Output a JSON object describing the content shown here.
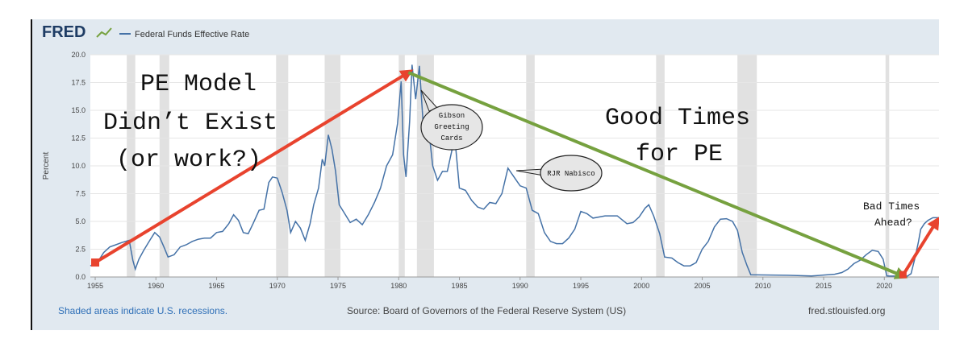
{
  "header": {
    "logo_text": "FRED",
    "legend_label": "Federal Funds Effective Rate"
  },
  "footer": {
    "recession_note": "Shaded areas indicate U.S. recessions.",
    "source": "Source: Board of Governors of the Federal Reserve System (US)",
    "site": "fred.stlouisfed.org"
  },
  "colors": {
    "series": "#4572a7",
    "recession": "#e1e1e1",
    "panel": "#e1e9f0",
    "red_arrow": "#e8432e",
    "green_arrow": "#76a13f",
    "footer_link": "#2e6fb7"
  },
  "annotations": {
    "pe_model": [
      "PE Model",
      "Didn’t Exist",
      "(or work?)"
    ],
    "good_times": [
      "Good Times",
      "for PE"
    ],
    "bad_times": [
      "Bad Times",
      "Ahead?"
    ],
    "gibson": [
      "Gibson",
      "Greeting",
      "Cards"
    ],
    "rjr": "RJR Nabisco"
  },
  "chart_data": {
    "type": "line",
    "ylabel": "Percent",
    "xlabel": "",
    "xlim": [
      1954.6,
      2024.5
    ],
    "ylim": [
      0,
      20
    ],
    "grid": true,
    "legend": "top-left",
    "x_ticks": [
      "1955",
      "1960",
      "1965",
      "1970",
      "1975",
      "1980",
      "1985",
      "1990",
      "1995",
      "2000",
      "2005",
      "2010",
      "2015",
      "2020"
    ],
    "y_ticks": [
      "0.0",
      "2.5",
      "5.0",
      "7.5",
      "10.0",
      "12.5",
      "15.0",
      "17.5",
      "20.0"
    ],
    "recessions": [
      [
        1957.6,
        1958.3
      ],
      [
        1960.3,
        1961.1
      ],
      [
        1969.9,
        1970.9
      ],
      [
        1973.9,
        1975.2
      ],
      [
        1980.0,
        1980.5
      ],
      [
        1981.5,
        1982.9
      ],
      [
        1990.5,
        1991.2
      ],
      [
        2001.2,
        2001.9
      ],
      [
        2007.9,
        2009.5
      ],
      [
        2020.1,
        2020.4
      ]
    ],
    "series": [
      {
        "name": "Federal Funds Effective Rate",
        "x": [
          1954.6,
          1954.9,
          1955.3,
          1955.7,
          1956.2,
          1956.7,
          1957.2,
          1957.8,
          1958.1,
          1958.3,
          1958.6,
          1959.0,
          1959.5,
          1959.9,
          1960.3,
          1960.7,
          1961.0,
          1961.5,
          1962.0,
          1962.5,
          1963.0,
          1963.5,
          1964.0,
          1964.5,
          1965.0,
          1965.5,
          1966.0,
          1966.4,
          1966.8,
          1967.2,
          1967.6,
          1968.0,
          1968.5,
          1968.9,
          1969.3,
          1969.6,
          1970.0,
          1970.4,
          1970.8,
          1971.1,
          1971.5,
          1971.9,
          1972.3,
          1972.7,
          1973.0,
          1973.4,
          1973.7,
          1973.9,
          1974.2,
          1974.5,
          1974.8,
          1975.1,
          1975.5,
          1976.0,
          1976.5,
          1977.0,
          1977.5,
          1978.0,
          1978.5,
          1979.0,
          1979.5,
          1979.9,
          1980.2,
          1980.4,
          1980.6,
          1980.9,
          1981.1,
          1981.4,
          1981.7,
          1982.0,
          1982.4,
          1982.8,
          1983.2,
          1983.6,
          1984.0,
          1984.4,
          1984.7,
          1985.0,
          1985.5,
          1986.0,
          1986.5,
          1987.0,
          1987.5,
          1988.0,
          1988.5,
          1989.0,
          1989.5,
          1990.0,
          1990.5,
          1991.0,
          1991.5,
          1992.0,
          1992.5,
          1993.0,
          1993.5,
          1994.0,
          1994.5,
          1995.0,
          1995.5,
          1996.0,
          1997.0,
          1998.0,
          1998.8,
          1999.3,
          1999.8,
          2000.3,
          2000.6,
          2001.0,
          2001.5,
          2001.9,
          2002.5,
          2003.0,
          2003.5,
          2004.0,
          2004.5,
          2005.0,
          2005.5,
          2006.0,
          2006.5,
          2007.0,
          2007.5,
          2007.9,
          2008.3,
          2008.7,
          2009.0,
          2010.0,
          2012.0,
          2014.0,
          2015.9,
          2016.5,
          2017.0,
          2017.5,
          2018.0,
          2018.5,
          2019.0,
          2019.5,
          2019.9,
          2020.2,
          2020.4,
          2021.0,
          2021.9,
          2022.2,
          2022.5,
          2022.8,
          2023.0,
          2023.3,
          2023.6,
          2024.0,
          2024.5
        ],
        "values": [
          1.0,
          1.2,
          1.5,
          2.2,
          2.7,
          2.9,
          3.1,
          3.3,
          1.5,
          0.7,
          1.6,
          2.4,
          3.3,
          4.0,
          3.6,
          2.6,
          1.8,
          2.0,
          2.7,
          2.9,
          3.2,
          3.4,
          3.5,
          3.5,
          4.0,
          4.1,
          4.8,
          5.6,
          5.1,
          4.0,
          3.9,
          4.8,
          6.0,
          6.1,
          8.5,
          9.0,
          8.9,
          7.6,
          6.0,
          4.0,
          5.0,
          4.4,
          3.3,
          4.8,
          6.5,
          8.0,
          10.6,
          10.0,
          12.8,
          11.5,
          9.5,
          6.5,
          5.8,
          4.9,
          5.2,
          4.7,
          5.6,
          6.7,
          8.0,
          10.0,
          11.0,
          13.8,
          17.6,
          11.0,
          9.0,
          14.0,
          19.1,
          16.0,
          19.0,
          14.0,
          14.0,
          10.0,
          8.7,
          9.5,
          9.5,
          11.5,
          11.6,
          8.0,
          7.8,
          6.9,
          6.3,
          6.1,
          6.7,
          6.6,
          7.5,
          9.8,
          9.0,
          8.2,
          8.0,
          6.0,
          5.7,
          4.0,
          3.2,
          3.0,
          3.0,
          3.5,
          4.3,
          5.9,
          5.7,
          5.3,
          5.5,
          5.5,
          4.8,
          4.9,
          5.4,
          6.2,
          6.5,
          5.5,
          3.9,
          1.8,
          1.7,
          1.3,
          1.0,
          1.0,
          1.3,
          2.5,
          3.2,
          4.5,
          5.2,
          5.25,
          5.0,
          4.2,
          2.2,
          1.0,
          0.2,
          0.18,
          0.15,
          0.09,
          0.25,
          0.4,
          0.7,
          1.2,
          1.5,
          2.0,
          2.4,
          2.3,
          1.6,
          0.1,
          0.08,
          0.08,
          0.08,
          0.3,
          1.6,
          3.1,
          4.3,
          4.8,
          5.1,
          5.33,
          5.33
        ]
      }
    ]
  }
}
